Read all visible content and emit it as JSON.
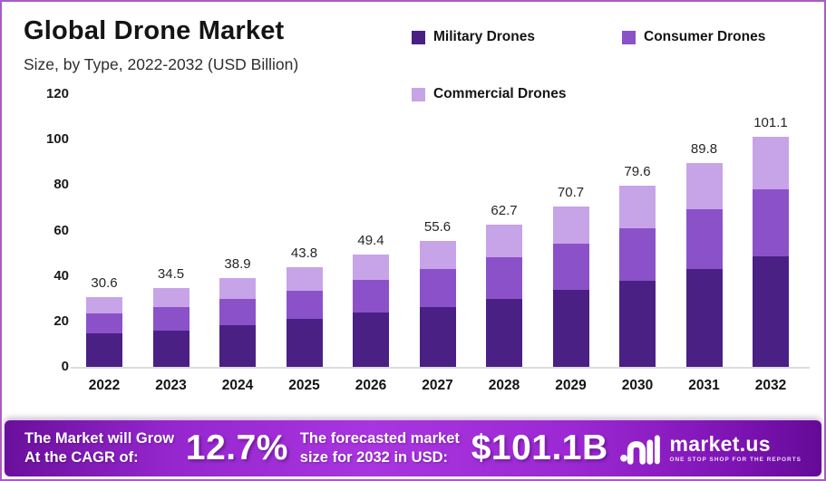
{
  "header": {
    "title": "Global Drone Market",
    "subtitle": "Size, by Type, 2022-2032 (USD Billion)"
  },
  "legend": {
    "items": [
      {
        "label": "Military Drones",
        "color": "#4a2085"
      },
      {
        "label": "Consumer Drones",
        "color": "#8b51c9"
      },
      {
        "label": "Commercial Drones",
        "color": "#c7a4e8"
      }
    ]
  },
  "chart_data": {
    "type": "bar",
    "stacked": true,
    "title": "Global Drone Market",
    "subtitle": "Size, by Type, 2022-2032 (USD Billion)",
    "ylabel": "USD Billion",
    "categories": [
      "2022",
      "2023",
      "2024",
      "2025",
      "2026",
      "2027",
      "2028",
      "2029",
      "2030",
      "2031",
      "2032"
    ],
    "series": [
      {
        "name": "Military Drones",
        "color": "#4a2085",
        "values": [
          14.7,
          16.1,
          18.4,
          21.3,
          23.9,
          26.5,
          30.1,
          34.0,
          38.0,
          43.2,
          48.7
        ]
      },
      {
        "name": "Consumer Drones",
        "color": "#8b51c9",
        "values": [
          8.7,
          10.3,
          11.4,
          12.3,
          14.2,
          16.5,
          18.1,
          20.2,
          23.1,
          26.0,
          29.4
        ]
      },
      {
        "name": "Commercial Drones",
        "color": "#c7a4e8",
        "values": [
          7.2,
          8.1,
          9.1,
          10.2,
          11.3,
          12.6,
          14.5,
          16.5,
          18.5,
          20.6,
          23.0
        ]
      }
    ],
    "totals": [
      30.6,
      34.5,
      38.9,
      43.8,
      49.4,
      55.6,
      62.7,
      70.7,
      79.6,
      89.8,
      101.1
    ],
    "total_labels": [
      "30.6",
      "34.5",
      "38.9",
      "43.8",
      "49.4",
      "55.6",
      "62.7",
      "70.7",
      "79.6",
      "89.8",
      "101.1"
    ],
    "ylim": [
      0,
      120
    ],
    "yticks": [
      0,
      20,
      40,
      60,
      80,
      100,
      120
    ],
    "grid": false,
    "legend_position": "top-right"
  },
  "footer": {
    "cagr_label_line1": "The Market will Grow",
    "cagr_label_line2": "At the CAGR of:",
    "cagr_value": "12.7%",
    "forecast_label_line1": "The forecasted market",
    "forecast_label_line2": "size for 2032 in USD:",
    "forecast_value": "$101.1B",
    "logo_text": "market.us",
    "logo_tagline": "ONE STOP SHOP FOR THE REPORTS"
  },
  "colors": {
    "border": "#a85cc3",
    "axis_line": "#dcdcdc",
    "banner_gradient": [
      "#6a0f9c",
      "#a935e0",
      "#9b28d2",
      "#640a97"
    ],
    "text": "#141414"
  }
}
